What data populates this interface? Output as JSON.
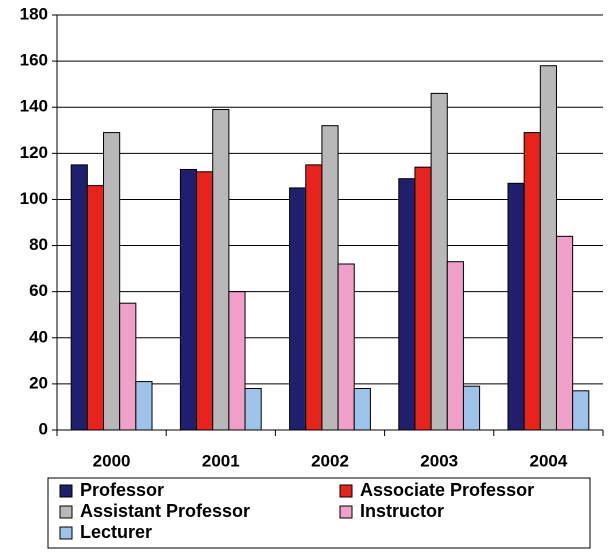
{
  "chart_data": {
    "type": "bar",
    "categories": [
      "2000",
      "2001",
      "2002",
      "2003",
      "2004"
    ],
    "series": [
      {
        "name": "Professor",
        "color": "#1f1f6e",
        "values": [
          115,
          113,
          105,
          109,
          107
        ]
      },
      {
        "name": "Associate Professor",
        "color": "#e8231c",
        "values": [
          106,
          112,
          115,
          114,
          129
        ]
      },
      {
        "name": "Assistant Professor",
        "color": "#b8b8b8",
        "values": [
          129,
          139,
          132,
          146,
          158
        ]
      },
      {
        "name": "Instructor",
        "color": "#f0a0c8",
        "values": [
          55,
          60,
          72,
          73,
          84
        ]
      },
      {
        "name": "Lecturer",
        "color": "#9ec3e8",
        "values": [
          21,
          18,
          18,
          19,
          17
        ]
      }
    ],
    "ylim": [
      0,
      180
    ],
    "yticks": [
      0,
      20,
      40,
      60,
      80,
      100,
      120,
      140,
      160,
      180
    ],
    "grid": true,
    "legend": "bottom"
  }
}
